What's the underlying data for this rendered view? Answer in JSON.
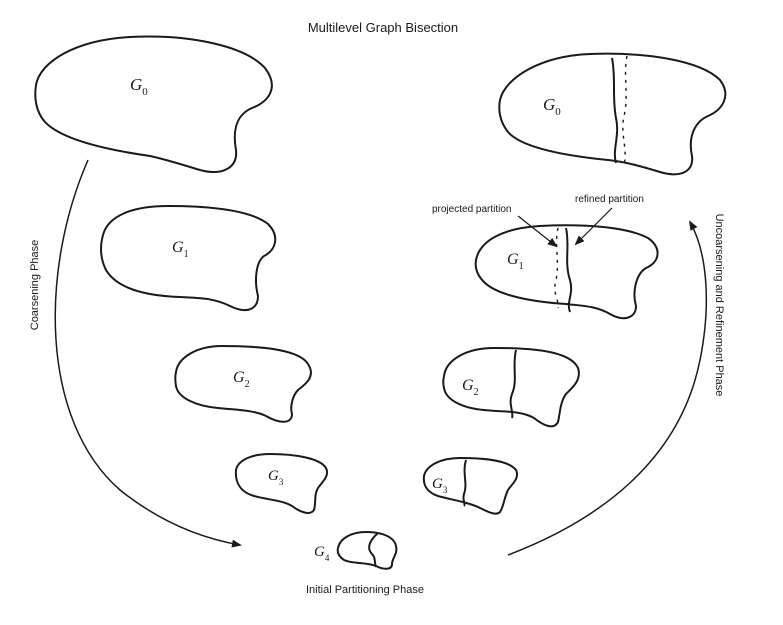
{
  "title": "Multilevel Graph Bisection",
  "phases": {
    "coarsening": "Coarsening Phase",
    "uncoarsening": "Uncoarsening and Refinement Phase",
    "initial": "Initial Partitioning Phase"
  },
  "annotations": {
    "projected": "projected partition",
    "refined": "refined partition"
  },
  "graphs_left": [
    {
      "base": "G",
      "sub": "0"
    },
    {
      "base": "G",
      "sub": "1"
    },
    {
      "base": "G",
      "sub": "2"
    },
    {
      "base": "G",
      "sub": "3"
    }
  ],
  "graph_bottom": {
    "base": "G",
    "sub": "4"
  },
  "graphs_right": [
    {
      "base": "G",
      "sub": "0"
    },
    {
      "base": "G",
      "sub": "1"
    },
    {
      "base": "G",
      "sub": "2"
    },
    {
      "base": "G",
      "sub": "3"
    }
  ]
}
